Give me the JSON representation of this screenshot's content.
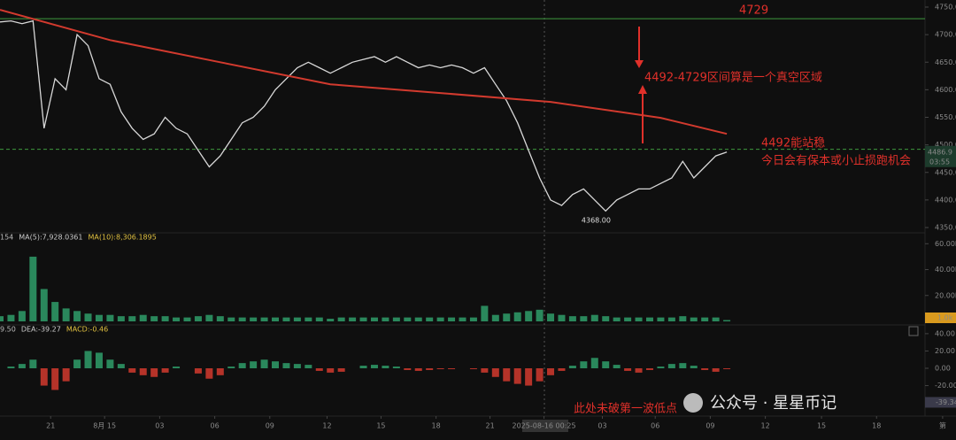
{
  "chart_data": [
    {
      "type": "line",
      "xlim": [
        0,
        84
      ],
      "ylim": [
        4350,
        4750
      ],
      "yticks": [
        {
          "value": 4350,
          "label": "4350.00"
        },
        {
          "value": 4400,
          "label": "4400.00"
        },
        {
          "value": 4450,
          "label": "4450.00"
        },
        {
          "value": 4500,
          "label": "4500.00"
        },
        {
          "value": 4550,
          "label": "4550.00"
        },
        {
          "value": 4600,
          "label": "4600.00"
        },
        {
          "value": 4650,
          "label": "4650.00"
        },
        {
          "value": 4700,
          "label": "4700.00"
        },
        {
          "value": 4750,
          "label": "4750.00"
        }
      ],
      "xticks": [
        {
          "value": 4.6,
          "label": "21"
        },
        {
          "value": 9.5,
          "label": "8月 15"
        },
        {
          "value": 14.5,
          "label": "03"
        },
        {
          "value": 19.5,
          "label": "06"
        },
        {
          "value": 24.5,
          "label": "09"
        },
        {
          "value": 29.7,
          "label": "12"
        },
        {
          "value": 34.6,
          "label": "15"
        },
        {
          "value": 39.6,
          "label": "18"
        },
        {
          "value": 44.5,
          "label": "21"
        },
        {
          "value": 49.4,
          "label": "2025-08-16 00:25"
        },
        {
          "value": 54.7,
          "label": "03"
        },
        {
          "value": 59.5,
          "label": "06"
        },
        {
          "value": 64.5,
          "label": "09"
        },
        {
          "value": 69.5,
          "label": "12"
        },
        {
          "value": 74.6,
          "label": "15"
        },
        {
          "value": 79.6,
          "label": "18"
        },
        {
          "value": 85.6,
          "label": "第"
        }
      ],
      "x": [
        0,
        1,
        2,
        3,
        4,
        5,
        6,
        7,
        8,
        9,
        10,
        11,
        12,
        13,
        14,
        15,
        16,
        17,
        18,
        19,
        20,
        21,
        22,
        23,
        24,
        25,
        26,
        27,
        28,
        29,
        30,
        31,
        32,
        33,
        34,
        35,
        36,
        37,
        38,
        39,
        40,
        41,
        42,
        43,
        44,
        45,
        46,
        47,
        48,
        49,
        50,
        51,
        52,
        53,
        54,
        55,
        56,
        57,
        58,
        59,
        60,
        61,
        62,
        63,
        64,
        65,
        66
      ],
      "series": [
        {
          "color": "#d8d8d8",
          "values": [
            4723,
            4725,
            4720,
            4725,
            4530,
            4620,
            4600,
            4700,
            4680,
            4620,
            4610,
            4560,
            4530,
            4510,
            4520,
            4550,
            4530,
            4520,
            4490,
            4460,
            4480,
            4510,
            4540,
            4550,
            4570,
            4600,
            4620,
            4640,
            4650,
            4640,
            4630,
            4640,
            4650,
            4655,
            4660,
            4650,
            4660,
            4650,
            4640,
            4645,
            4640,
            4645,
            4640,
            4630,
            4640,
            4610,
            4580,
            4540,
            4490,
            4440,
            4400,
            4390,
            4410,
            4420,
            4400,
            4380,
            4400,
            4410,
            4420,
            4420,
            4430,
            4440,
            4470,
            4440,
            4460,
            4480,
            4487
          ]
        },
        {
          "color": "#d23a2e",
          "x": [
            0,
            10,
            20,
            30,
            40,
            50,
            60,
            66
          ],
          "values": [
            4745,
            4690,
            4650,
            4610,
            4594,
            4578,
            4549,
            4520
          ]
        }
      ],
      "reference_lines": [
        {
          "value": 4729,
          "label": "4729",
          "color": "#3f9a3f"
        },
        {
          "value": 4492,
          "color": "#3f9a3f",
          "style": "dashed"
        }
      ],
      "low_label": {
        "value": 4368,
        "label": "4368.00"
      },
      "last_price": {
        "value": 4486.9,
        "label": "4486.9"
      },
      "countdown": "03:55",
      "annotations": [
        "4492-4729区间算是一个真空区域",
        "4492能站稳",
        "今日会有保本或小止损跑机会"
      ]
    },
    {
      "type": "bar",
      "header": [
        "154",
        "MA(5):7,928.0361",
        "MA(10):8,306.1895"
      ],
      "ylim": [
        0,
        65
      ],
      "yticks": [
        {
          "value": 20,
          "label": "20.00K"
        },
        {
          "value": 40,
          "label": "40.00K"
        },
        {
          "value": 60,
          "label": "60.00K"
        }
      ],
      "last_label": "1.0k",
      "values": [
        4,
        5,
        8,
        50,
        25,
        15,
        10,
        8,
        6,
        5,
        5,
        4,
        4,
        5,
        4,
        4,
        3,
        3,
        4,
        5,
        4,
        3,
        3,
        3,
        3,
        3,
        3,
        3,
        3,
        3,
        2,
        3,
        3,
        3,
        3,
        3,
        3,
        3,
        3,
        3,
        3,
        3,
        3,
        3,
        12,
        5,
        6,
        7,
        8,
        9,
        6,
        5,
        4,
        4,
        5,
        4,
        3,
        3,
        3,
        3,
        3,
        3,
        4,
        3,
        3,
        3,
        1
      ]
    },
    {
      "type": "bar",
      "header": [
        "9.50",
        "DEA:-39.27",
        "MACD:-0.46"
      ],
      "ylim": [
        -45,
        45
      ],
      "yticks": [
        {
          "value": -40,
          "label": "-40.00"
        },
        {
          "value": -20,
          "label": "-20.00"
        },
        {
          "value": 0,
          "label": "0.00"
        },
        {
          "value": 20,
          "label": "20.00"
        },
        {
          "value": 40,
          "label": "40.00"
        }
      ],
      "last_value": {
        "value": -39.34,
        "label": "-39.34"
      },
      "annotation": "此处未破第一波低点",
      "values": [
        0,
        2,
        5,
        10,
        -20,
        -25,
        -15,
        10,
        20,
        18,
        10,
        5,
        -5,
        -8,
        -10,
        -5,
        2,
        0,
        -6,
        -12,
        -8,
        2,
        6,
        8,
        10,
        8,
        6,
        5,
        4,
        -3,
        -5,
        -4,
        0,
        3,
        4,
        3,
        2,
        -2,
        -3,
        -2,
        -1,
        -1,
        0,
        -1,
        -5,
        -10,
        -15,
        -18,
        -20,
        -15,
        -8,
        -3,
        3,
        8,
        12,
        8,
        4,
        -3,
        -5,
        -2,
        2,
        5,
        6,
        3,
        -2,
        -4,
        -1
      ]
    }
  ],
  "watermark": "公众号 · 星星币记"
}
